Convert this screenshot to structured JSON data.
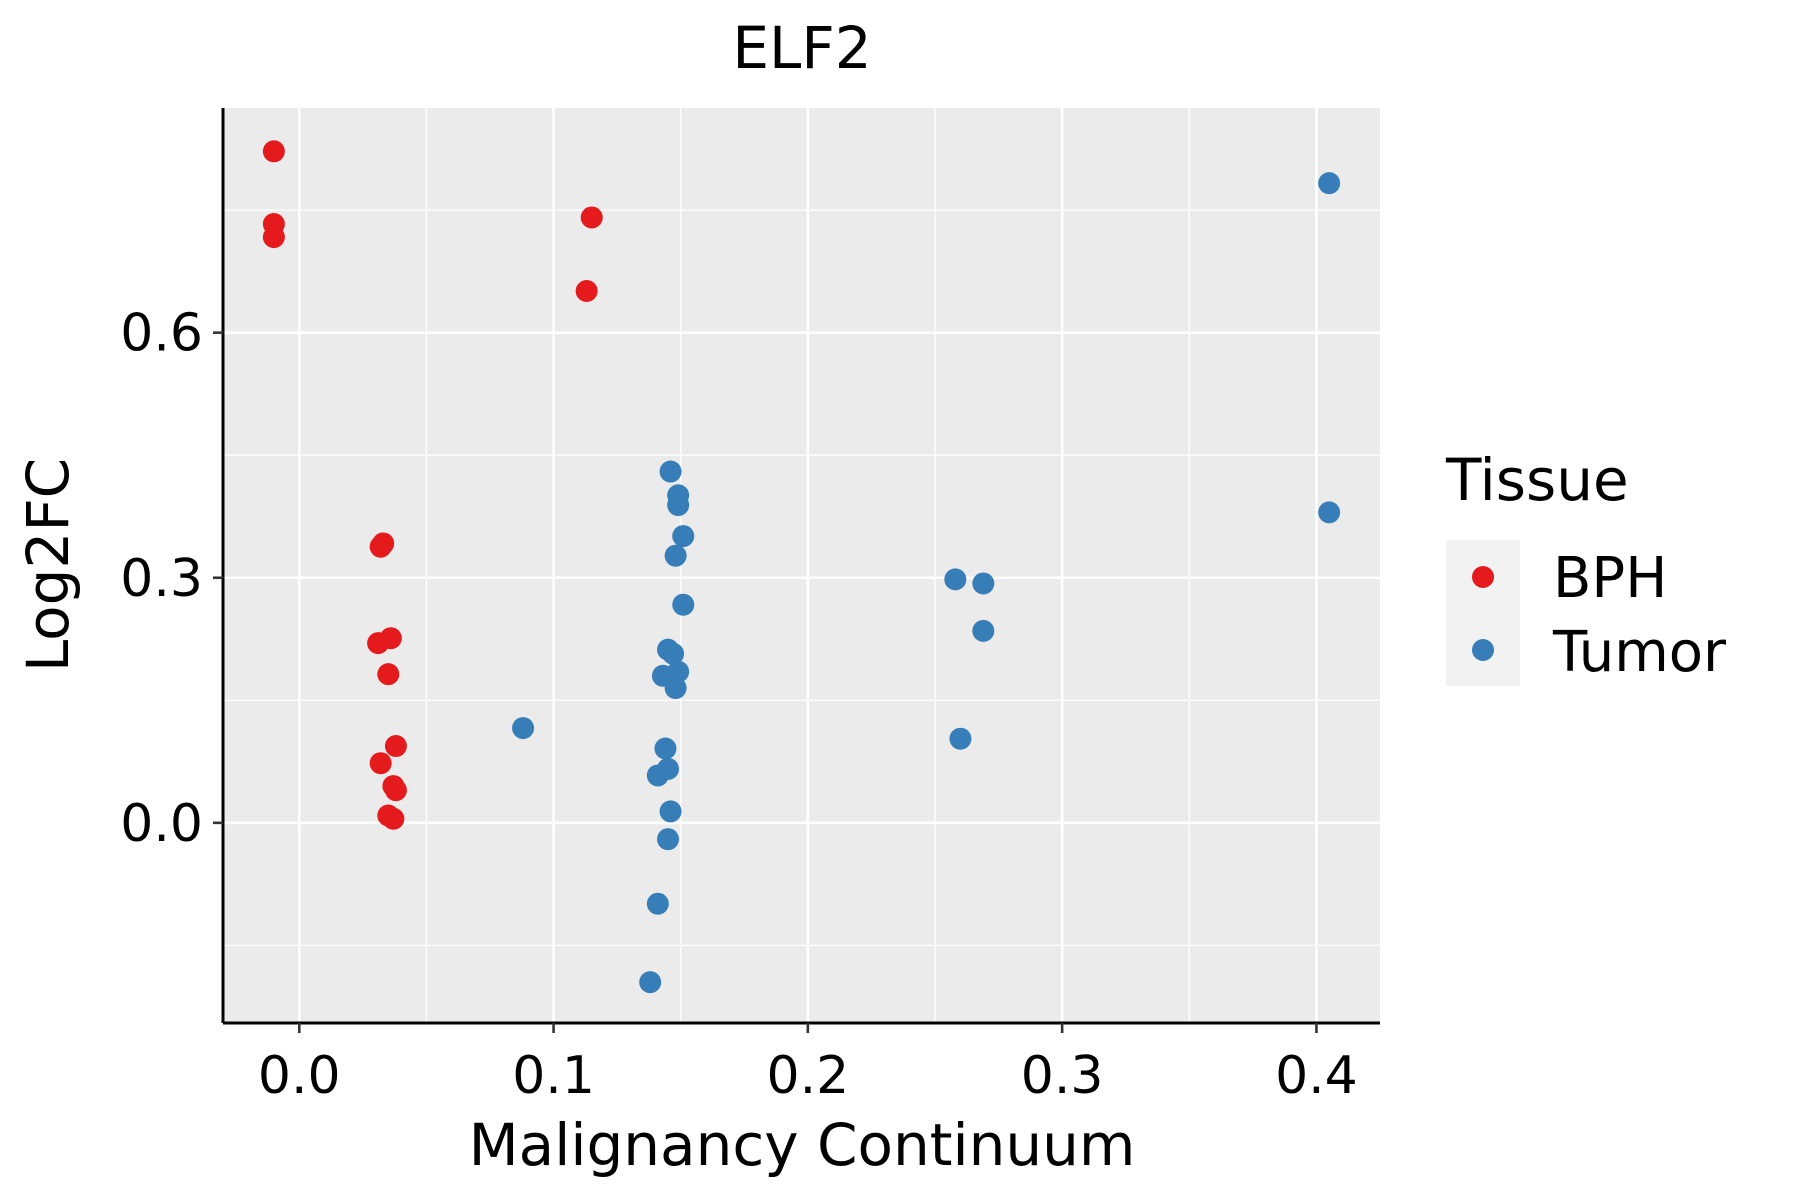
{
  "chart_data": {
    "type": "scatter",
    "title": "ELF2",
    "xlabel": "Malignancy Continuum",
    "ylabel": "Log2FC",
    "xlim": [
      -0.03,
      0.425
    ],
    "ylim": [
      -0.245,
      0.875
    ],
    "x_ticks": [
      0.0,
      0.1,
      0.2,
      0.3,
      0.4
    ],
    "x_tick_labels": [
      "0.0",
      "0.1",
      "0.2",
      "0.3",
      "0.4"
    ],
    "y_ticks": [
      0.0,
      0.3,
      0.6
    ],
    "y_tick_labels": [
      "0.0",
      "0.3",
      "0.6"
    ],
    "x_minor": [
      0.05,
      0.15,
      0.25,
      0.35
    ],
    "y_minor": [
      -0.15,
      0.15,
      0.45,
      0.75
    ],
    "grid": true,
    "legend": {
      "title": "Tissue",
      "placement": "right"
    },
    "series": [
      {
        "name": "BPH",
        "color": "#e41a1c",
        "points": [
          {
            "x": -0.01,
            "y": 0.822
          },
          {
            "x": -0.01,
            "y": 0.733
          },
          {
            "x": -0.01,
            "y": 0.717
          },
          {
            "x": 0.115,
            "y": 0.741
          },
          {
            "x": 0.113,
            "y": 0.651
          },
          {
            "x": 0.033,
            "y": 0.342
          },
          {
            "x": 0.032,
            "y": 0.338
          },
          {
            "x": 0.031,
            "y": 0.22
          },
          {
            "x": 0.036,
            "y": 0.226
          },
          {
            "x": 0.035,
            "y": 0.182
          },
          {
            "x": 0.038,
            "y": 0.094
          },
          {
            "x": 0.032,
            "y": 0.073
          },
          {
            "x": 0.037,
            "y": 0.045
          },
          {
            "x": 0.038,
            "y": 0.04
          },
          {
            "x": 0.035,
            "y": 0.009
          },
          {
            "x": 0.037,
            "y": 0.005
          }
        ]
      },
      {
        "name": "Tumor",
        "color": "#377eb8",
        "points": [
          {
            "x": 0.405,
            "y": 0.783
          },
          {
            "x": 0.405,
            "y": 0.38
          },
          {
            "x": 0.088,
            "y": 0.116
          },
          {
            "x": 0.146,
            "y": 0.43
          },
          {
            "x": 0.149,
            "y": 0.401
          },
          {
            "x": 0.149,
            "y": 0.389
          },
          {
            "x": 0.151,
            "y": 0.351
          },
          {
            "x": 0.148,
            "y": 0.327
          },
          {
            "x": 0.151,
            "y": 0.267
          },
          {
            "x": 0.145,
            "y": 0.212
          },
          {
            "x": 0.147,
            "y": 0.207
          },
          {
            "x": 0.149,
            "y": 0.185
          },
          {
            "x": 0.143,
            "y": 0.18
          },
          {
            "x": 0.148,
            "y": 0.165
          },
          {
            "x": 0.144,
            "y": 0.091
          },
          {
            "x": 0.145,
            "y": 0.066
          },
          {
            "x": 0.141,
            "y": 0.058
          },
          {
            "x": 0.146,
            "y": 0.014
          },
          {
            "x": 0.145,
            "y": -0.02
          },
          {
            "x": 0.141,
            "y": -0.099
          },
          {
            "x": 0.138,
            "y": -0.195
          },
          {
            "x": 0.258,
            "y": 0.298
          },
          {
            "x": 0.269,
            "y": 0.293
          },
          {
            "x": 0.269,
            "y": 0.235
          },
          {
            "x": 0.26,
            "y": 0.103
          }
        ]
      }
    ]
  }
}
